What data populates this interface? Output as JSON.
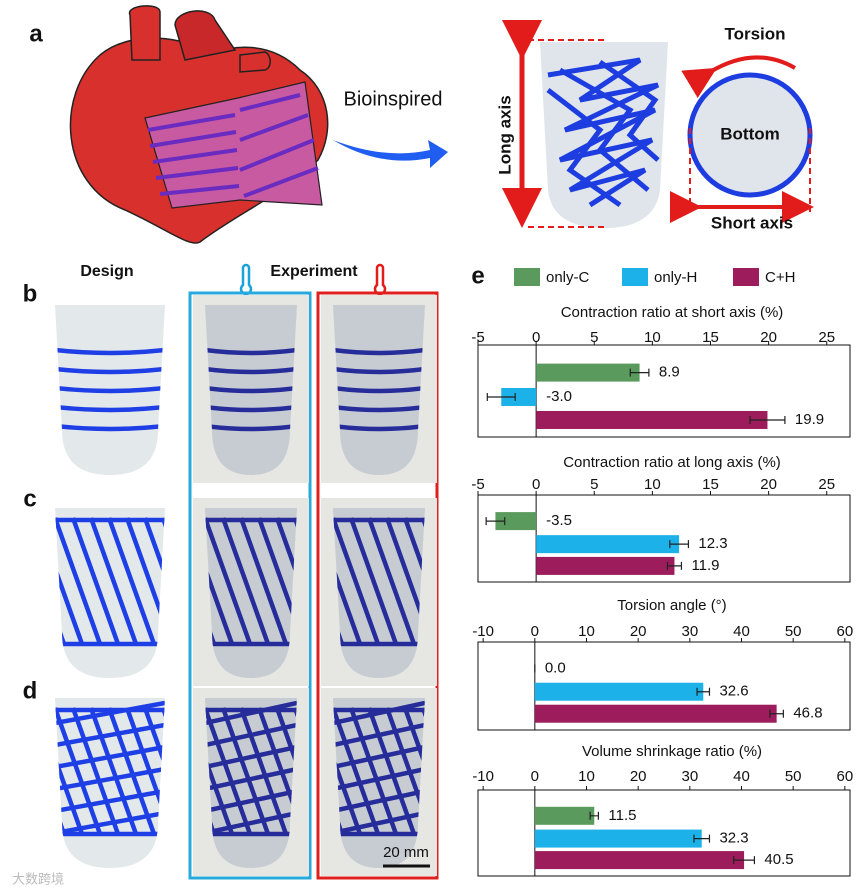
{
  "panel_labels": [
    "a",
    "b",
    "c",
    "d",
    "e"
  ],
  "panel_a": {
    "arrow_label": "Bioinspired",
    "torsion": "Torsion",
    "bottom": "Bottom",
    "long_axis": "Long axis",
    "short_axis": "Short axis"
  },
  "column_headers": {
    "design": "Design",
    "experiment": "Experiment"
  },
  "scale_bar": "20 mm",
  "watermark": "大数跨境",
  "chart_data": [
    {
      "type": "barh",
      "title": "Contraction ratio at short axis (%)",
      "xlim": [
        -5,
        27
      ],
      "xticks": [
        -5,
        0,
        5,
        10,
        15,
        20,
        25
      ],
      "series": [
        {
          "name": "only-C",
          "color": "#5b9a5d",
          "values": [
            8.9
          ],
          "errors": [
            0.8
          ]
        },
        {
          "name": "only-H",
          "color": "#1db1e9",
          "values": [
            -3.0
          ],
          "errors": [
            1.2
          ],
          "value_labels": [
            "-3.0"
          ]
        },
        {
          "name": "C+H",
          "color": "#9c1c5c",
          "values": [
            19.9
          ],
          "errors": [
            1.5
          ]
        }
      ]
    },
    {
      "type": "barh",
      "title": "Contraction ratio at long axis (%)",
      "xlim": [
        -5,
        27
      ],
      "xticks": [
        -5,
        0,
        5,
        10,
        15,
        20,
        25
      ],
      "series": [
        {
          "color": "#5b9a5d",
          "values": [
            -3.5
          ],
          "errors": [
            0.8
          ]
        },
        {
          "color": "#1db1e9",
          "values": [
            12.3
          ],
          "errors": [
            0.8
          ]
        },
        {
          "color": "#9c1c5c",
          "values": [
            11.9
          ],
          "errors": [
            0.6
          ]
        }
      ]
    },
    {
      "type": "barh",
      "title": "Torsion angle (°)",
      "xlim": [
        -11,
        61
      ],
      "xticks": [
        -10,
        0,
        10,
        20,
        30,
        40,
        50,
        60
      ],
      "series": [
        {
          "color": "#5b9a5d",
          "values": [
            0
          ],
          "errors": [
            0
          ],
          "value_labels": [
            "0.0"
          ]
        },
        {
          "color": "#1db1e9",
          "values": [
            32.6
          ],
          "errors": [
            1.2
          ]
        },
        {
          "color": "#9c1c5c",
          "values": [
            46.8
          ],
          "errors": [
            1.3
          ]
        }
      ]
    },
    {
      "type": "barh",
      "title": "Volume shrinkage ratio (%)",
      "xlim": [
        -11,
        61
      ],
      "xticks": [
        -10,
        0,
        10,
        20,
        30,
        40,
        50,
        60
      ],
      "series": [
        {
          "color": "#5b9a5d",
          "values": [
            11.5
          ],
          "errors": [
            0.8
          ]
        },
        {
          "color": "#1db1e9",
          "values": [
            32.3
          ],
          "errors": [
            1.5
          ]
        },
        {
          "color": "#9c1c5c",
          "values": [
            40.5
          ],
          "errors": [
            2.0
          ]
        }
      ]
    }
  ]
}
